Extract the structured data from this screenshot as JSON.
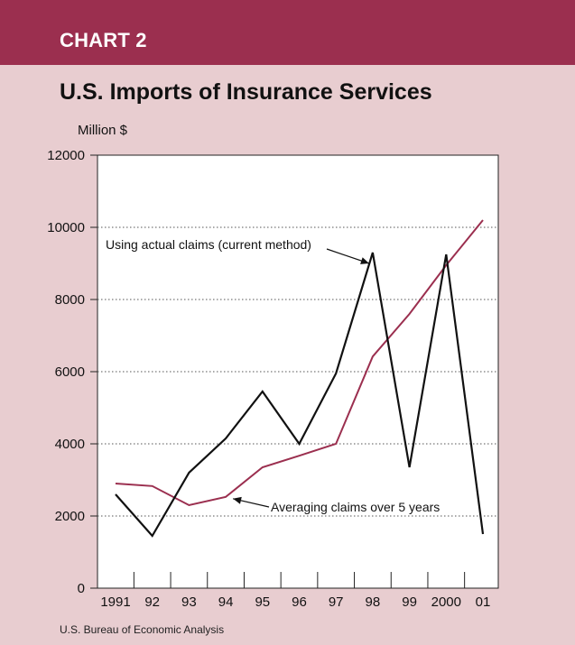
{
  "header": {
    "chart_label": "CHART 2",
    "title": "U.S. Imports of Insurance Services",
    "unit": "Million $",
    "source": "U.S. Bureau of Economic Analysis"
  },
  "colors": {
    "band": "#9b2f4f",
    "background": "#e8cdd0",
    "series_actual": "#111111",
    "series_average": "#9b2f4f"
  },
  "chart_data": {
    "type": "line",
    "x": [
      "1991",
      "92",
      "93",
      "94",
      "95",
      "96",
      "97",
      "98",
      "99",
      "2000",
      "01"
    ],
    "ylim": [
      0,
      12000
    ],
    "yticks": [
      0,
      2000,
      4000,
      6000,
      8000,
      10000,
      12000
    ],
    "grid": "horizontal dotted",
    "series": [
      {
        "name": "Using actual claims (current method)",
        "values": [
          2600,
          1450,
          3200,
          4150,
          5450,
          4000,
          5950,
          9300,
          3350,
          9250,
          1500
        ]
      },
      {
        "name": "Averaging claims over 5 years",
        "values": [
          2900,
          2830,
          2300,
          2530,
          3350,
          3670,
          4000,
          6420,
          7600,
          8950,
          10200
        ]
      }
    ],
    "annotations": [
      {
        "text": "Using actual claims (current method)",
        "series": 0,
        "x_index": 7
      },
      {
        "text": "Averaging claims over 5 years",
        "series": 1,
        "x_index": 3
      }
    ]
  }
}
